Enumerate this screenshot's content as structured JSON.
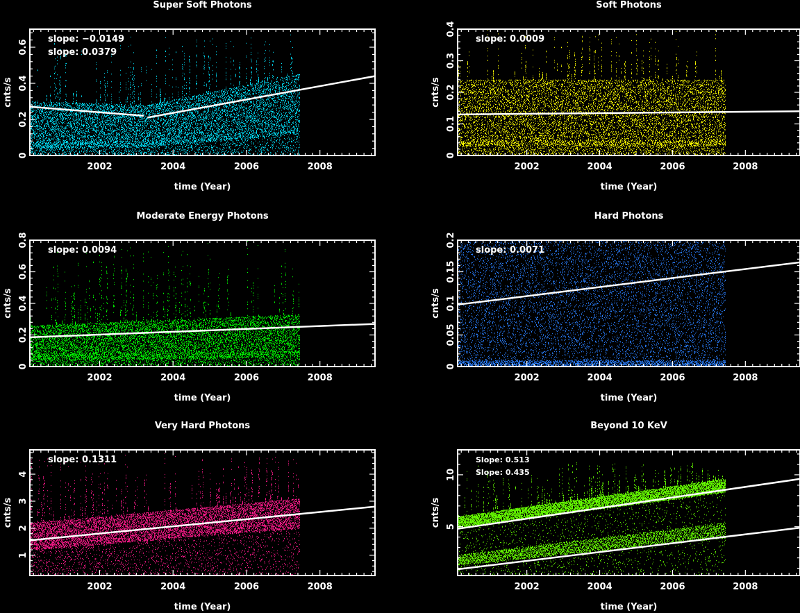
{
  "chart_data": [
    {
      "type": "scatter",
      "title": "Super Soft Photons",
      "xlabel": "time (Year)",
      "ylabel": "cnts/s",
      "color": "#00e5ff",
      "xlim": [
        2000.1,
        2009.5
      ],
      "ylim": [
        0,
        0.7
      ],
      "xticks": [
        2002,
        2004,
        2006,
        2008
      ],
      "yticks": [
        0,
        0.2,
        0.4,
        0.6
      ],
      "ytick_labels": [
        "0",
        "0.2",
        "0.4",
        "0.6"
      ],
      "data_x_range": [
        2000.1,
        2007.45
      ],
      "annotations": [
        "slope:  −0.0149",
        "slope:  0.0379"
      ],
      "fit_lines": [
        {
          "x": [
            2000.1,
            2003.2
          ],
          "y": [
            0.27,
            0.22
          ]
        },
        {
          "x": [
            2003.3,
            2009.5
          ],
          "y": [
            0.21,
            0.44
          ]
        }
      ],
      "band": [
        [
          2000.1,
          0.04,
          0.3
        ],
        [
          2003.3,
          0.05,
          0.28
        ],
        [
          2007.4,
          0.12,
          0.45
        ]
      ],
      "spike_max": 0.68
    },
    {
      "type": "scatter",
      "title": "Soft Photons",
      "xlabel": "time (Year)",
      "ylabel": "cnts/s",
      "color": "#ffff00",
      "xlim": [
        2000.1,
        2009.5
      ],
      "ylim": [
        0,
        0.4
      ],
      "xticks": [
        2002,
        2004,
        2006,
        2008
      ],
      "yticks": [
        0,
        0.1,
        0.2,
        0.3,
        0.4
      ],
      "ytick_labels": [
        "0",
        "0.1",
        "0.2",
        "0.3",
        "0.4"
      ],
      "data_x_range": [
        2000.1,
        2007.45
      ],
      "annotations": [
        "slope:  0.0009"
      ],
      "fit_lines": [
        {
          "x": [
            2000.1,
            2009.5
          ],
          "y": [
            0.13,
            0.14
          ]
        }
      ],
      "band": [
        [
          2000.1,
          0.03,
          0.24
        ],
        [
          2007.4,
          0.03,
          0.24
        ]
      ],
      "spike_max": 0.4
    },
    {
      "type": "scatter",
      "title": "Moderate Energy Photons",
      "xlabel": "time (Year)",
      "ylabel": "cnts/s",
      "color": "#00ff00",
      "xlim": [
        2000.1,
        2009.5
      ],
      "ylim": [
        0,
        0.8
      ],
      "xticks": [
        2002,
        2004,
        2006,
        2008
      ],
      "yticks": [
        0,
        0.2,
        0.4,
        0.6,
        0.8
      ],
      "ytick_labels": [
        "0",
        "0.2",
        "0.4",
        "0.6",
        "0.8"
      ],
      "data_x_range": [
        2000.1,
        2007.45
      ],
      "annotations": [
        "slope:  0.0094"
      ],
      "fit_lines": [
        {
          "x": [
            2000.1,
            2009.5
          ],
          "y": [
            0.185,
            0.27
          ]
        }
      ],
      "band": [
        [
          2000.1,
          0.04,
          0.26
        ],
        [
          2007.4,
          0.06,
          0.33
        ]
      ],
      "spike_max": 0.8
    },
    {
      "type": "scatter",
      "title": "Hard Photons",
      "xlabel": "time (Year)",
      "ylabel": "cnts/s",
      "color": "#2a7fff",
      "xlim": [
        2000.1,
        2009.5
      ],
      "ylim": [
        0,
        0.2
      ],
      "xticks": [
        2002,
        2004,
        2006,
        2008
      ],
      "yticks": [
        0,
        0.05,
        0.1,
        0.15,
        0.2
      ],
      "ytick_labels": [
        "0",
        "0.05",
        "0.1",
        "0.15",
        "0.2"
      ],
      "data_x_range": [
        2000.1,
        2007.45
      ],
      "annotations": [
        "slope:  0.0071"
      ],
      "fit_lines": [
        {
          "x": [
            2000.1,
            2009.5
          ],
          "y": [
            0.098,
            0.165
          ]
        }
      ],
      "band": [
        [
          2000.1,
          0.0,
          0.2
        ],
        [
          2007.4,
          0.0,
          0.2
        ]
      ],
      "spike_max": 0.2
    },
    {
      "type": "scatter",
      "title": "Very Hard  Photons",
      "xlabel": "time (Year)",
      "ylabel": "cnts/s",
      "color": "#ff1a8c",
      "xlim": [
        2000.1,
        2009.5
      ],
      "ylim": [
        0.25,
        4.9
      ],
      "xticks": [
        2002,
        2004,
        2006,
        2008
      ],
      "yticks": [
        1,
        2,
        3,
        4
      ],
      "ytick_labels": [
        "1",
        "2",
        "3",
        "4"
      ],
      "data_x_range": [
        2000.1,
        2007.45
      ],
      "annotations": [
        "slope:  0.1311"
      ],
      "fit_lines": [
        {
          "x": [
            2000.1,
            2009.5
          ],
          "y": [
            1.55,
            2.8
          ]
        }
      ],
      "band": [
        [
          2000.1,
          1.2,
          2.2
        ],
        [
          2007.4,
          2.0,
          3.1
        ]
      ],
      "spike_max": 4.8
    },
    {
      "type": "scatter",
      "title": "Beyond 10 KeV",
      "xlabel": "time (Year)",
      "ylabel": "cnts/s",
      "color": "#66ff00",
      "xlim": [
        2000.1,
        2009.5
      ],
      "ylim": [
        0.3,
        12.4
      ],
      "xticks": [
        2002,
        2004,
        2006,
        2008
      ],
      "yticks": [
        5,
        10
      ],
      "ytick_labels": [
        "5",
        "10"
      ],
      "data_x_range": [
        2000.1,
        2007.45
      ],
      "annotations": [
        "Slope:  0.513",
        "Slope:  0.435"
      ],
      "fit_lines": [
        {
          "x": [
            2000.1,
            2009.5
          ],
          "y": [
            4.8,
            9.6
          ]
        },
        {
          "x": [
            2000.1,
            2009.5
          ],
          "y": [
            0.9,
            4.9
          ]
        }
      ],
      "band": [
        [
          2000.1,
          4.9,
          6.0
        ],
        [
          2007.4,
          8.3,
          9.6
        ]
      ],
      "band2": [
        [
          2000.1,
          1.3,
          2.3
        ],
        [
          2007.4,
          3.9,
          5.4
        ]
      ],
      "spike_max": 11.5
    }
  ]
}
